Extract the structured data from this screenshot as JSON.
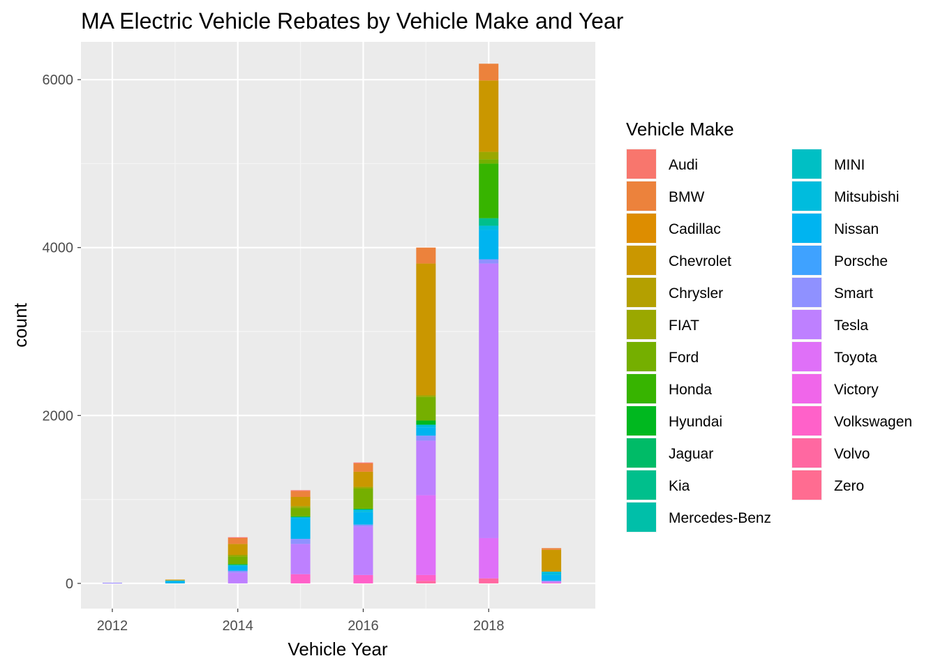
{
  "chart_data": {
    "type": "bar",
    "stacked": true,
    "title": "MA Electric Vehicle Rebates by Vehicle Make and Year",
    "xlabel": "Vehicle Year",
    "ylabel": "count",
    "xlim": [
      2011.5,
      2019.7
    ],
    "ylim": [
      -300,
      6450
    ],
    "xticks": [
      "2012",
      "2014",
      "2016",
      "2018"
    ],
    "xtick_values": [
      2012,
      2014,
      2016,
      2018
    ],
    "yticks": [
      "0",
      "2000",
      "4000",
      "6000"
    ],
    "ytick_values": [
      0,
      2000,
      4000,
      6000
    ],
    "legend_title": "Vehicle Make",
    "legend_position": "right",
    "makes": [
      {
        "name": "Audi",
        "color": "#F8766D"
      },
      {
        "name": "BMW",
        "color": "#EC823C"
      },
      {
        "name": "Cadillac",
        "color": "#DD8D00"
      },
      {
        "name": "Chevrolet",
        "color": "#CA9700"
      },
      {
        "name": "Chrysler",
        "color": "#B4A000"
      },
      {
        "name": "FIAT",
        "color": "#9AA800"
      },
      {
        "name": "Ford",
        "color": "#75AF00"
      },
      {
        "name": "Honda",
        "color": "#37B400"
      },
      {
        "name": "Hyundai",
        "color": "#00B81F"
      },
      {
        "name": "Jaguar",
        "color": "#00BB67"
      },
      {
        "name": "Kia",
        "color": "#00BF8C"
      },
      {
        "name": "Mercedes-Benz",
        "color": "#00BFA9"
      },
      {
        "name": "MINI",
        "color": "#00BFC4"
      },
      {
        "name": "Mitsubishi",
        "color": "#00BCDD"
      },
      {
        "name": "Nissan",
        "color": "#00B4F0"
      },
      {
        "name": "Porsche",
        "color": "#3FA2FF"
      },
      {
        "name": "Smart",
        "color": "#8F91FF"
      },
      {
        "name": "Tesla",
        "color": "#BE80FF"
      },
      {
        "name": "Toyota",
        "color": "#DF70F8"
      },
      {
        "name": "Victory",
        "color": "#F066EA"
      },
      {
        "name": "Volkswagen",
        "color": "#FF61C9"
      },
      {
        "name": "Volvo",
        "color": "#FF68A1"
      },
      {
        "name": "Zero",
        "color": "#FF6C91"
      }
    ],
    "years": [
      {
        "year": 2012,
        "counts": {
          "Tesla": 5,
          "Smart": 3
        }
      },
      {
        "year": 2013,
        "counts": {
          "Nissan": 25,
          "Mitsubishi": 10,
          "Chevrolet": 10
        }
      },
      {
        "year": 2014,
        "counts": {
          "Tesla": 130,
          "Smart": 20,
          "Nissan": 60,
          "Mitsubishi": 10,
          "Hyundai": 10,
          "Ford": 90,
          "FIAT": 20,
          "Chevrolet": 130,
          "BMW": 70,
          "Audi": 10
        }
      },
      {
        "year": 2015,
        "counts": {
          "Volkswagen": 110,
          "Tesla": 360,
          "Smart": 60,
          "Nissan": 250,
          "Mitsubishi": 10,
          "Hyundai": 10,
          "Ford": 100,
          "FIAT": 20,
          "Chevrolet": 110,
          "BMW": 70,
          "Audi": 10
        }
      },
      {
        "year": 2016,
        "counts": {
          "Volkswagen": 100,
          "Tesla": 580,
          "Smart": 20,
          "Nissan": 150,
          "Mitsubishi": 30,
          "Hyundai": 10,
          "Ford": 240,
          "FIAT": 20,
          "Chevrolet": 180,
          "BMW": 100,
          "Audi": 10
        }
      },
      {
        "year": 2017,
        "counts": {
          "Volvo": 30,
          "Volkswagen": 70,
          "Toyota": 950,
          "Tesla": 650,
          "Smart": 60,
          "Nissan": 100,
          "Mitsubishi": 30,
          "Hyundai": 50,
          "Ford": 280,
          "FIAT": 20,
          "Chevrolet": 1570,
          "BMW": 190
        }
      },
      {
        "year": 2018,
        "counts": {
          "Volvo": 60,
          "Toyota": 480,
          "Tesla": 3270,
          "Smart": 50,
          "Nissan": 350,
          "Mitsubishi": 50,
          "Kia": 90,
          "Honda": 650,
          "Ford": 50,
          "FIAT": 90,
          "Chevrolet": 850,
          "BMW": 200
        }
      },
      {
        "year": 2019,
        "counts": {
          "Volkswagen": 10,
          "Tesla": 20,
          "Nissan": 70,
          "Mitsubishi": 40,
          "Chevrolet": 260,
          "BMW": 20
        }
      }
    ]
  }
}
